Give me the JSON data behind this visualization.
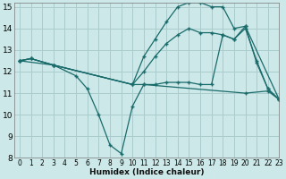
{
  "xlabel": "Humidex (Indice chaleur)",
  "bg_color": "#cce8e8",
  "grid_color": "#aacccc",
  "line_color": "#1a6b6b",
  "xlim": [
    -0.5,
    23
  ],
  "ylim": [
    8,
    15.2
  ],
  "yticks": [
    8,
    9,
    10,
    11,
    12,
    13,
    14,
    15
  ],
  "xticks": [
    0,
    1,
    2,
    3,
    4,
    5,
    6,
    7,
    8,
    9,
    10,
    11,
    12,
    13,
    14,
    15,
    16,
    17,
    18,
    19,
    20,
    21,
    22,
    23
  ],
  "lines": [
    {
      "x": [
        0,
        1,
        3,
        5,
        6,
        7,
        8,
        9,
        10,
        11,
        20,
        22,
        23
      ],
      "y": [
        12.5,
        12.6,
        12.3,
        11.8,
        11.2,
        10.0,
        8.6,
        8.2,
        10.4,
        11.4,
        11.0,
        11.1,
        10.7
      ]
    },
    {
      "x": [
        0,
        1,
        3,
        10,
        11,
        12,
        13,
        14,
        15,
        16,
        17,
        18,
        19,
        20,
        21,
        22,
        23
      ],
      "y": [
        12.5,
        12.6,
        12.3,
        11.4,
        12.7,
        13.5,
        14.3,
        15.0,
        15.2,
        15.2,
        15.0,
        15.0,
        14.0,
        14.1,
        12.4,
        11.2,
        10.7
      ]
    },
    {
      "x": [
        0,
        1,
        3,
        10,
        11,
        12,
        13,
        14,
        15,
        16,
        17,
        18,
        19,
        20,
        21,
        22,
        23
      ],
      "y": [
        12.5,
        12.6,
        12.3,
        11.4,
        11.4,
        11.4,
        11.5,
        11.5,
        11.5,
        11.4,
        11.4,
        13.7,
        13.5,
        14.0,
        12.5,
        11.2,
        10.7
      ]
    },
    {
      "x": [
        0,
        3,
        10,
        11,
        12,
        13,
        14,
        15,
        16,
        17,
        18,
        19,
        20,
        23
      ],
      "y": [
        12.5,
        12.3,
        11.4,
        12.0,
        12.7,
        13.3,
        13.7,
        14.0,
        13.8,
        13.8,
        13.7,
        13.5,
        14.1,
        10.7
      ]
    }
  ]
}
